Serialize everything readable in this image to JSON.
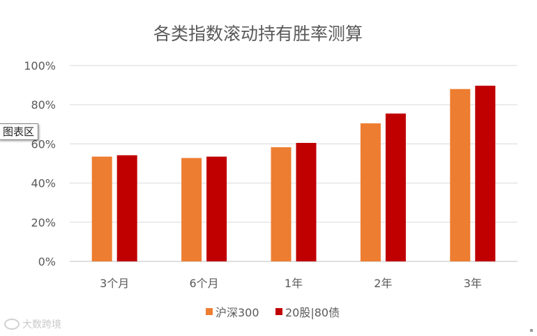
{
  "chart_data": {
    "type": "bar",
    "title": "各类指数滚动持有胜率测算",
    "categories": [
      "3个月",
      "6个月",
      "1年",
      "2年",
      "3年"
    ],
    "series": [
      {
        "name": "沪深300",
        "color": "#ED7D31",
        "values": [
          53.5,
          52.8,
          58.3,
          70.5,
          88.0
        ]
      },
      {
        "name": "20股|80债",
        "color": "#C00000",
        "values": [
          54.2,
          53.5,
          60.5,
          75.5,
          89.7
        ]
      }
    ],
    "ylim": [
      0,
      100
    ],
    "yticks": [
      "0%",
      "20%",
      "40%",
      "60%",
      "80%",
      "100%"
    ],
    "ytick_values": [
      0,
      20,
      40,
      60,
      80,
      100
    ],
    "grid": true,
    "legend_position": "bottom"
  },
  "tooltip": {
    "label": "图表区"
  },
  "watermark": {
    "text": "大数跨境"
  }
}
